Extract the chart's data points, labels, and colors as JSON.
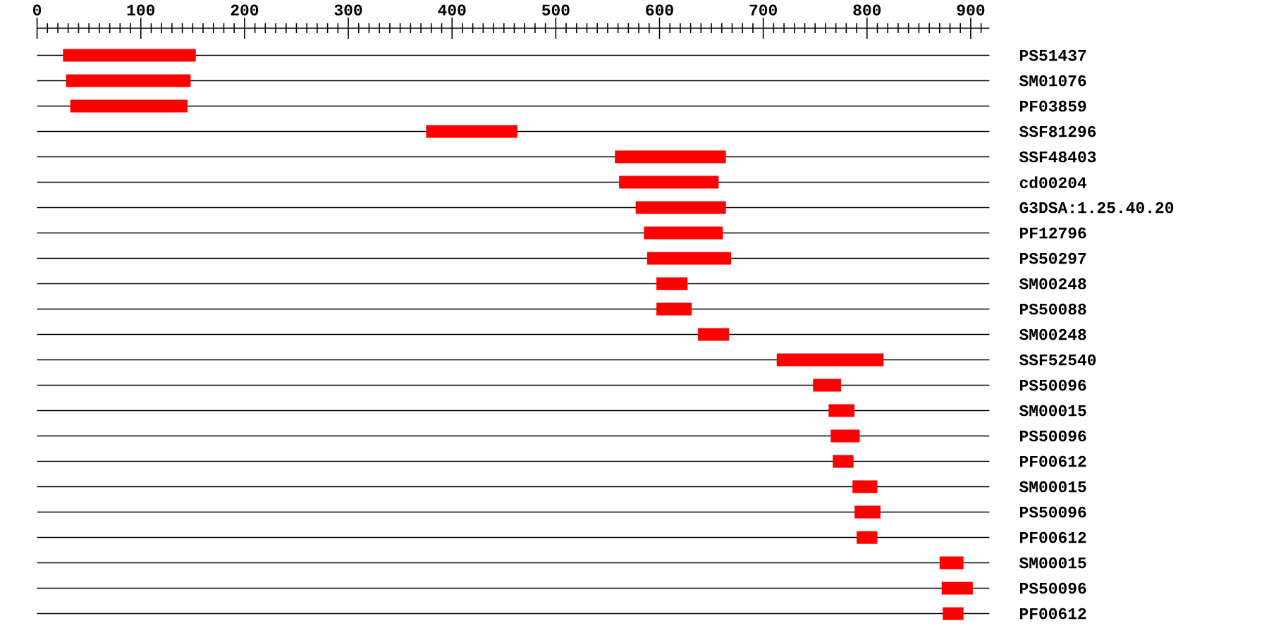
{
  "chart_data": {
    "type": "bar",
    "orientation": "horizontal",
    "color": "#ff0000",
    "grid": "y",
    "categories": [
      "PS51437",
      "SM01076",
      "PF03859",
      "SSF81296",
      "SSF48403",
      "cd00204",
      "G3DSA:1.25.40.20",
      "PF12796",
      "PS50297",
      "SM00248",
      "PS50088",
      "SM00248",
      "SSF52540",
      "PS50096",
      "SM00015",
      "PS50096",
      "PF00612",
      "SM00015",
      "PS50096",
      "PF00612",
      "SM00015",
      "PS50096",
      "PF00612"
    ],
    "base": [
      25,
      28,
      32,
      375,
      557,
      561,
      577,
      585,
      588,
      597,
      597,
      637,
      713,
      748,
      763,
      765,
      767,
      786,
      788,
      790,
      870,
      872,
      873
    ],
    "values": [
      128,
      120,
      113,
      88,
      107,
      96,
      87,
      76,
      81,
      30,
      34,
      30,
      103,
      27,
      25,
      28,
      20,
      24,
      25,
      20,
      23,
      30,
      20
    ],
    "xlim": [
      0,
      918
    ],
    "xticks": [
      0,
      100,
      200,
      300,
      400,
      500,
      600,
      700,
      800,
      900,
      {
        "value": 10,
        "label": null
      },
      {
        "value": 20,
        "label": null
      },
      {
        "value": 30,
        "label": null
      },
      {
        "value": 40,
        "label": null
      },
      {
        "value": 50,
        "label": null
      },
      {
        "value": 60,
        "label": null
      },
      {
        "value": 70,
        "label": null
      },
      {
        "value": 80,
        "label": null
      },
      {
        "value": 90,
        "label": null
      },
      {
        "value": 110,
        "label": null
      },
      {
        "value": 120,
        "label": null
      },
      {
        "value": 130,
        "label": null
      },
      {
        "value": 140,
        "label": null
      },
      {
        "value": 150,
        "label": null
      },
      {
        "value": 160,
        "label": null
      },
      {
        "value": 170,
        "label": null
      },
      {
        "value": 180,
        "label": null
      },
      {
        "value": 190,
        "label": null
      },
      {
        "value": 210,
        "label": null
      },
      {
        "value": 220,
        "label": null
      },
      {
        "value": 230,
        "label": null
      },
      {
        "value": 240,
        "label": null
      },
      {
        "value": 250,
        "label": null
      },
      {
        "value": 260,
        "label": null
      },
      {
        "value": 270,
        "label": null
      },
      {
        "value": 280,
        "label": null
      },
      {
        "value": 290,
        "label": null
      },
      {
        "value": 310,
        "label": null
      },
      {
        "value": 320,
        "label": null
      },
      {
        "value": 330,
        "label": null
      },
      {
        "value": 340,
        "label": null
      },
      {
        "value": 350,
        "label": null
      },
      {
        "value": 360,
        "label": null
      },
      {
        "value": 370,
        "label": null
      },
      {
        "value": 380,
        "label": null
      },
      {
        "value": 390,
        "label": null
      },
      {
        "value": 410,
        "label": null
      },
      {
        "value": 420,
        "label": null
      },
      {
        "value": 430,
        "label": null
      },
      {
        "value": 440,
        "label": null
      },
      {
        "value": 450,
        "label": null
      },
      {
        "value": 460,
        "label": null
      },
      {
        "value": 470,
        "label": null
      },
      {
        "value": 480,
        "label": null
      },
      {
        "value": 490,
        "label": null
      },
      {
        "value": 510,
        "label": null
      },
      {
        "value": 520,
        "label": null
      },
      {
        "value": 530,
        "label": null
      },
      {
        "value": 540,
        "label": null
      },
      {
        "value": 550,
        "label": null
      },
      {
        "value": 560,
        "label": null
      },
      {
        "value": 570,
        "label": null
      },
      {
        "value": 580,
        "label": null
      },
      {
        "value": 590,
        "label": null
      },
      {
        "value": 610,
        "label": null
      },
      {
        "value": 620,
        "label": null
      },
      {
        "value": 630,
        "label": null
      },
      {
        "value": 640,
        "label": null
      },
      {
        "value": 650,
        "label": null
      },
      {
        "value": 660,
        "label": null
      },
      {
        "value": 670,
        "label": null
      },
      {
        "value": 680,
        "label": null
      },
      {
        "value": 690,
        "label": null
      },
      {
        "value": 710,
        "label": null
      },
      {
        "value": 720,
        "label": null
      },
      {
        "value": 730,
        "label": null
      },
      {
        "value": 740,
        "label": null
      },
      {
        "value": 750,
        "label": null
      },
      {
        "value": 760,
        "label": null
      },
      {
        "value": 770,
        "label": null
      },
      {
        "value": 780,
        "label": null
      },
      {
        "value": 790,
        "label": null
      },
      {
        "value": 810,
        "label": null
      },
      {
        "value": 820,
        "label": null
      },
      {
        "value": 830,
        "label": null
      },
      {
        "value": 840,
        "label": null
      },
      {
        "value": 850,
        "label": null
      },
      {
        "value": 860,
        "label": null
      },
      {
        "value": 870,
        "label": null
      },
      {
        "value": 880,
        "label": null
      },
      {
        "value": 890,
        "label": null
      },
      {
        "value": 910,
        "label": null
      }
    ]
  }
}
